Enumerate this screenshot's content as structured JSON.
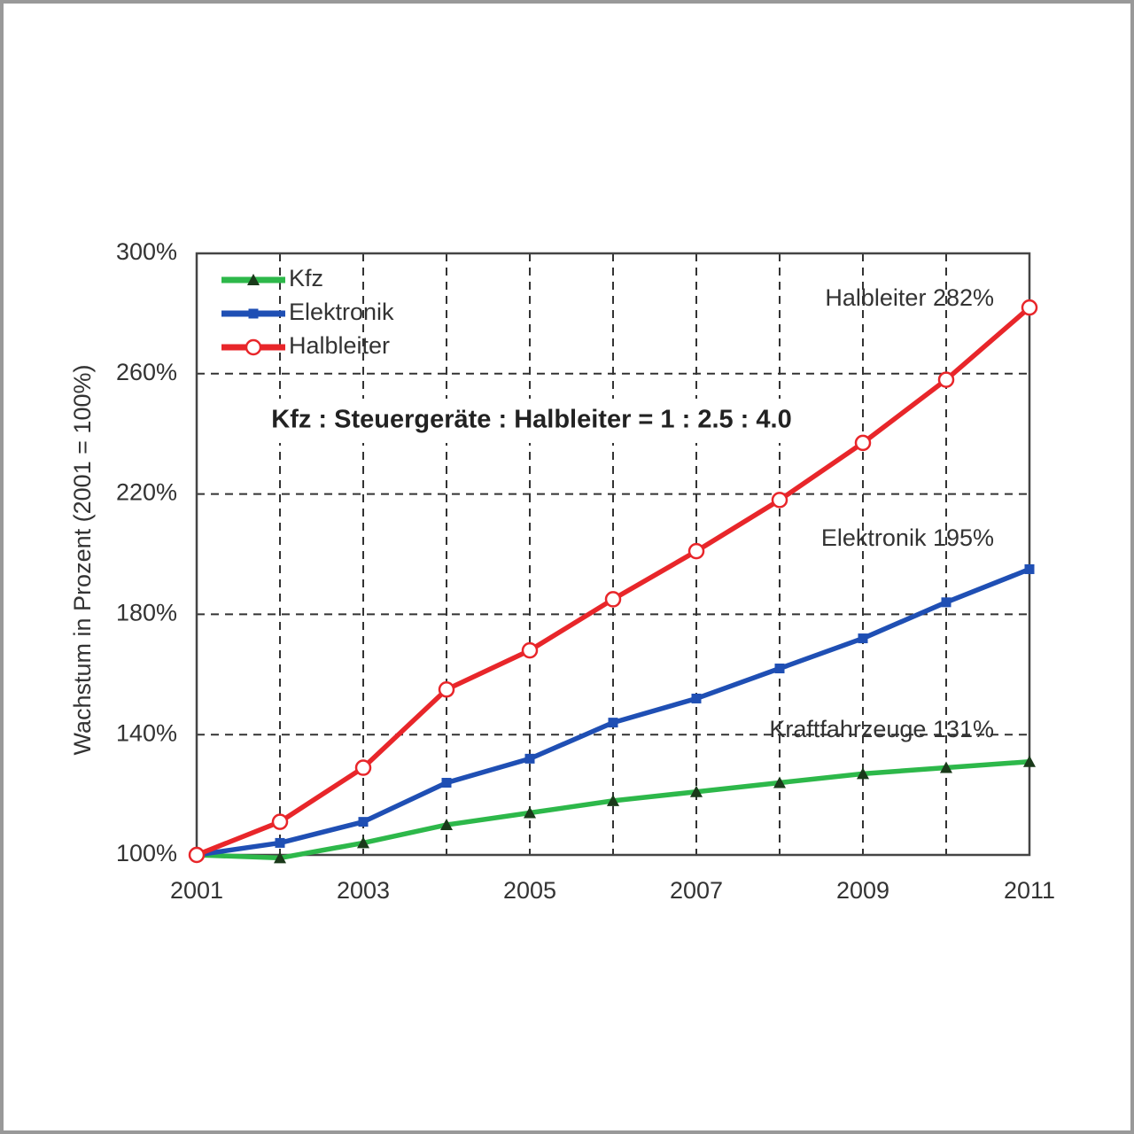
{
  "chart_data": {
    "type": "line",
    "y_label": "Wachstum in Prozent (2001 = 100%)",
    "x": [
      2001,
      2002,
      2003,
      2004,
      2005,
      2006,
      2007,
      2008,
      2009,
      2010,
      2011
    ],
    "xlim": [
      2001,
      2011
    ],
    "xticks": [
      2001,
      2003,
      2005,
      2007,
      2009,
      2011
    ],
    "ylim": [
      100,
      300
    ],
    "yticks": [
      {
        "value": 100,
        "label": "100%"
      },
      {
        "value": 140,
        "label": "140%"
      },
      {
        "value": 180,
        "label": "180%"
      },
      {
        "value": 220,
        "label": "220%"
      },
      {
        "value": 260,
        "label": "260%"
      },
      {
        "value": 300,
        "label": "300%"
      }
    ],
    "grid": true,
    "legend": "top-left",
    "series": [
      {
        "name": "Kfz",
        "color": "#2db84a",
        "marker": "triangle",
        "values": [
          100,
          99,
          104,
          110,
          114,
          118,
          121,
          124,
          127,
          129,
          131
        ]
      },
      {
        "name": "Elektronik",
        "color": "#1f4fb4",
        "marker": "square",
        "values": [
          100,
          104,
          111,
          124,
          132,
          144,
          152,
          162,
          172,
          184,
          195
        ]
      },
      {
        "name": "Halbleiter",
        "color": "#e8262a",
        "marker": "circle",
        "values": [
          100,
          111,
          129,
          155,
          168,
          185,
          201,
          218,
          237,
          258,
          282
        ]
      }
    ],
    "annotations": [
      "Kfz : Steuergeräte : Halbleiter = 1 : 2.5 : 4.0",
      "Halbleiter 282%",
      "Elektronik 195%",
      "Kraftfahrzeuge 131%"
    ]
  }
}
